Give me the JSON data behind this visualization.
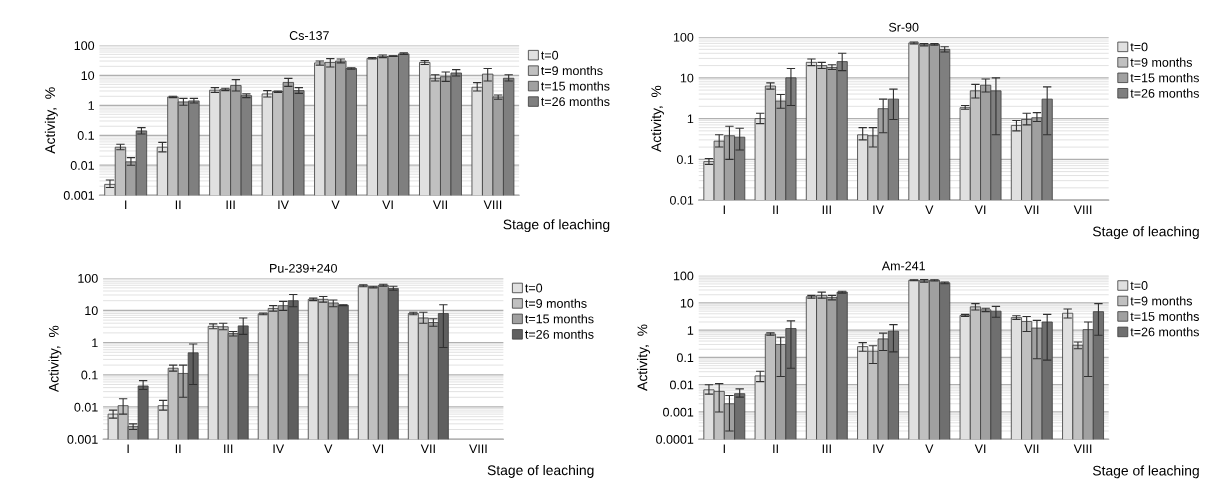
{
  "chart_data": [
    {
      "type": "bar",
      "title": "Cs-137",
      "ylabel": "Activity,  %",
      "xlabel": "Stage of leaching",
      "log": true,
      "grid": "y",
      "legend": "right",
      "ylim": [
        0.001,
        100
      ],
      "yticks": [
        0.001,
        0.01,
        0.1,
        1,
        10,
        100
      ],
      "categories": [
        "I",
        "II",
        "III",
        "IV",
        "V",
        "VI",
        "VII",
        "VIII"
      ],
      "series": [
        {
          "name": "t=0",
          "color": "#e0e0e0",
          "values": [
            0.0023,
            0.04,
            3.2,
            2.4,
            26,
            37,
            27,
            4
          ],
          "errors": [
            [
              0.0018,
              0.0032
            ],
            [
              0.028,
              0.058
            ],
            [
              2.7,
              3.9
            ],
            [
              1.9,
              3.1
            ],
            [
              22,
              30
            ],
            [
              35,
              39
            ],
            [
              23,
              31
            ],
            [
              3,
              5.7
            ]
          ]
        },
        {
          "name": "t=9 months",
          "color": "#c0c0c0",
          "values": [
            0.04,
            1.9,
            3.4,
            2.9,
            27,
            43,
            8,
            11
          ],
          "errors": [
            [
              0.033,
              0.05
            ],
            [
              1.8,
              2.0
            ],
            [
              3.1,
              3.7
            ],
            [
              2.7,
              3.0
            ],
            [
              19,
              36
            ],
            [
              39,
              48
            ],
            [
              6.5,
              10.5
            ],
            [
              6.5,
              17
            ]
          ]
        },
        {
          "name": "t=15 months",
          "color": "#a0a0a0",
          "values": [
            0.013,
            1.3,
            4.6,
            5.8,
            30,
            44,
            9,
            1.9
          ],
          "errors": [
            [
              0.01,
              0.018
            ],
            [
              1.0,
              1.7
            ],
            [
              3.0,
              7.2
            ],
            [
              4.3,
              7.9
            ],
            [
              26,
              35
            ],
            [
              43,
              45
            ],
            [
              6.3,
              13
            ],
            [
              1.6,
              2.2
            ]
          ]
        },
        {
          "name": "t=26 months",
          "color": "#7f7f7f",
          "values": [
            0.14,
            1.4,
            2.1,
            3.1,
            17,
            52,
            12,
            8
          ],
          "errors": [
            [
              0.11,
              0.18
            ],
            [
              1.2,
              1.7
            ],
            [
              1.8,
              2.4
            ],
            [
              2.5,
              3.9
            ],
            [
              16,
              18
            ],
            [
              50,
              56
            ],
            [
              9.5,
              15.5
            ],
            [
              6.5,
              10.5
            ]
          ]
        }
      ]
    },
    {
      "type": "bar",
      "title": "Sr-90",
      "ylabel": "Activity,  %",
      "xlabel": "Stage of leaching",
      "log": true,
      "grid": "y",
      "legend": "right",
      "ylim": [
        0.01,
        100
      ],
      "yticks": [
        0.01,
        0.1,
        1,
        10,
        100
      ],
      "categories": [
        "I",
        "II",
        "III",
        "IV",
        "V",
        "VI",
        "VII",
        "VIII"
      ],
      "series": [
        {
          "name": "t=0",
          "color": "#e0e0e0",
          "values": [
            0.088,
            1.0,
            24,
            0.4,
            72,
            1.85,
            0.68,
            null
          ],
          "errors": [
            [
              0.075,
              0.105
            ],
            [
              0.75,
              1.35
            ],
            [
              20,
              29
            ],
            [
              0.3,
              0.6
            ],
            [
              68,
              76
            ],
            [
              1.7,
              2.1
            ],
            [
              0.5,
              0.9
            ],
            null
          ]
        },
        {
          "name": "t=9 months",
          "color": "#c0c0c0",
          "values": [
            0.28,
            6.3,
            20,
            0.38,
            65,
            4.8,
            0.95,
            null
          ],
          "errors": [
            [
              0.2,
              0.4
            ],
            [
              5.3,
              7.5
            ],
            [
              17,
              24
            ],
            [
              0.2,
              0.6
            ],
            [
              61,
              69
            ],
            [
              3.2,
              6.9
            ],
            [
              0.7,
              1.35
            ],
            null
          ]
        },
        {
          "name": "t=15 months",
          "color": "#a0a0a0",
          "values": [
            0.38,
            2.7,
            18,
            1.75,
            66,
            6.6,
            1.05,
            null
          ],
          "errors": [
            [
              0.1,
              0.65
            ],
            [
              1.8,
              3.9
            ],
            [
              16,
              21
            ],
            [
              0.45,
              3.0
            ],
            [
              63,
              69
            ],
            [
              4.5,
              9.4
            ],
            [
              0.85,
              1.4
            ],
            null
          ]
        },
        {
          "name": "t=26 months",
          "color": "#7f7f7f",
          "values": [
            0.35,
            10,
            25,
            3.0,
            50,
            4.8,
            3.0,
            null
          ],
          "errors": [
            [
              0.17,
              0.58
            ],
            [
              2.1,
              17
            ],
            [
              15,
              40
            ],
            [
              0.95,
              5.3
            ],
            [
              43,
              58
            ],
            [
              0.4,
              10
            ],
            [
              0.4,
              6.0
            ],
            null
          ]
        }
      ]
    },
    {
      "type": "bar",
      "title": "Pu-239+240",
      "ylabel": "Activity,  %",
      "xlabel": "Stage of leaching",
      "log": true,
      "grid": "y",
      "legend": "right",
      "ylim": [
        0.001,
        100
      ],
      "yticks": [
        0.001,
        0.01,
        0.1,
        1,
        10,
        100
      ],
      "categories": [
        "I",
        "II",
        "III",
        "IV",
        "V",
        "VI",
        "VII",
        "VIII"
      ],
      "series": [
        {
          "name": "t=0",
          "color": "#e0e0e0",
          "values": [
            0.006,
            0.011,
            3.2,
            7.8,
            22,
            58,
            8,
            null
          ],
          "errors": [
            [
              0.0045,
              0.008
            ],
            [
              0.008,
              0.016
            ],
            [
              2.7,
              3.8
            ],
            [
              7.3,
              8.3
            ],
            [
              20,
              24
            ],
            [
              54,
              62
            ],
            [
              7.3,
              8.7
            ],
            null
          ]
        },
        {
          "name": "t=9 months",
          "color": "#c0c0c0",
          "values": [
            0.011,
            0.16,
            3.1,
            11.5,
            22,
            53,
            5.8,
            null
          ],
          "errors": [
            [
              0.006,
              0.018
            ],
            [
              0.13,
              0.2
            ],
            [
              2.5,
              4.0
            ],
            [
              9.5,
              14
            ],
            [
              18,
              27
            ],
            [
              50,
              56
            ],
            [
              4,
              8.7
            ],
            null
          ]
        },
        {
          "name": "t=15 months",
          "color": "#a0a0a0",
          "values": [
            0.0025,
            0.11,
            1.9,
            14,
            17,
            60,
            4.2,
            null
          ],
          "errors": [
            [
              0.002,
              0.003
            ],
            [
              0.02,
              0.2
            ],
            [
              1.6,
              2.2
            ],
            [
              10,
              19
            ],
            [
              13,
              21
            ],
            [
              56,
              65
            ],
            [
              3.2,
              5.5
            ],
            null
          ]
        },
        {
          "name": "t=26 months",
          "color": "#5f5f5f",
          "values": [
            0.045,
            0.48,
            3.3,
            20,
            14.5,
            48,
            8,
            null
          ],
          "errors": [
            [
              0.035,
              0.066
            ],
            [
              0.05,
              0.9
            ],
            [
              1.8,
              5.8
            ],
            [
              13,
              31
            ],
            [
              14,
              15
            ],
            [
              42,
              56
            ],
            [
              0.7,
              15
            ],
            null
          ]
        }
      ]
    },
    {
      "type": "bar",
      "title": "Am-241",
      "ylabel": "Activity,  %",
      "xlabel": "Stage of leaching",
      "log": true,
      "grid": "y",
      "legend": "right",
      "ylim": [
        0.0001,
        100
      ],
      "yticks": [
        0.0001,
        0.001,
        0.01,
        0.1,
        1,
        10,
        100
      ],
      "categories": [
        "I",
        "II",
        "III",
        "IV",
        "V",
        "VI",
        "VII",
        "VIII"
      ],
      "series": [
        {
          "name": "t=0",
          "color": "#e0e0e0",
          "values": [
            0.0065,
            0.021,
            17,
            0.25,
            68,
            3.5,
            2.9,
            4.2
          ],
          "errors": [
            [
              0.0045,
              0.01
            ],
            [
              0.013,
              0.031
            ],
            [
              15,
              19
            ],
            [
              0.17,
              0.35
            ],
            [
              65,
              71
            ],
            [
              3.2,
              3.8
            ],
            [
              2.5,
              3.4
            ],
            [
              2.8,
              6
            ]
          ]
        },
        {
          "name": "t=9 months",
          "color": "#c0c0c0",
          "values": [
            0.0057,
            0.72,
            19,
            0.17,
            65,
            7.2,
            2.1,
            0.28
          ],
          "errors": [
            [
              0.001,
              0.011
            ],
            [
              0.65,
              0.8
            ],
            [
              15,
              25
            ],
            [
              0.06,
              0.27
            ],
            [
              58,
              72
            ],
            [
              5.5,
              9.5
            ],
            [
              0.9,
              3.2
            ],
            [
              0.21,
              0.37
            ]
          ]
        },
        {
          "name": "t=15 months",
          "color": "#a0a0a0",
          "values": [
            0.002,
            0.3,
            16,
            0.48,
            68,
            5.6,
            1.2,
            1.05
          ],
          "errors": [
            [
              0.0002,
              0.004
            ],
            [
              0.02,
              0.55
            ],
            [
              13,
              19
            ],
            [
              0.18,
              0.78
            ],
            [
              64,
              71
            ],
            [
              4.8,
              6.4
            ],
            [
              0.09,
              2.3
            ],
            [
              0.02,
              2.0
            ]
          ]
        },
        {
          "name": "t=26 months",
          "color": "#6f6f6f",
          "values": [
            0.0047,
            1.15,
            25,
            0.92,
            55,
            5,
            2,
            4.8
          ],
          "errors": [
            [
              0.0035,
              0.007
            ],
            [
              0.04,
              2.2
            ],
            [
              23,
              27
            ],
            [
              0.16,
              1.6
            ],
            [
              51,
              59
            ],
            [
              3,
              7.5
            ],
            [
              0.08,
              3.8
            ],
            [
              0.65,
              9.5
            ]
          ]
        }
      ]
    }
  ]
}
